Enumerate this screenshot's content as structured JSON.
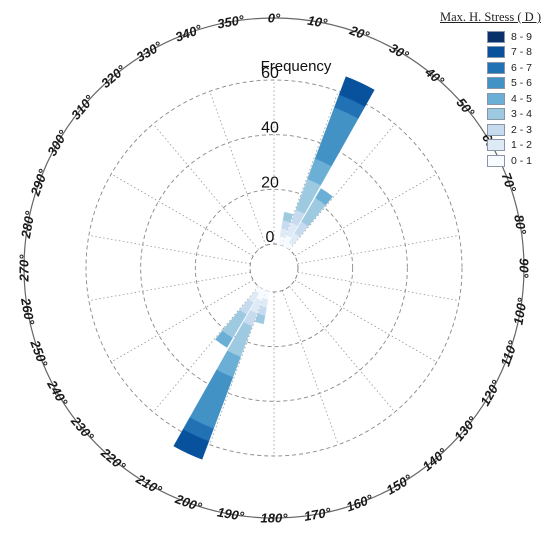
{
  "chart_data": {
    "type": "rose",
    "radial_title": "Frequency",
    "radial_ticks": [
      0,
      20,
      40,
      60
    ],
    "radial_max": 60,
    "angular_ticks": [
      "0°",
      "10°",
      "20°",
      "30°",
      "40°",
      "50°",
      "60°",
      "70°",
      "80°",
      "90°",
      "100°",
      "110°",
      "120°",
      "130°",
      "140°",
      "150°",
      "160°",
      "170°",
      "180°",
      "190°",
      "200°",
      "210°",
      "220°",
      "230°",
      "240°",
      "250°",
      "260°",
      "270°",
      "280°",
      "290°",
      "300°",
      "310°",
      "320°",
      "330°",
      "340°",
      "350°"
    ],
    "angular_tick_values": [
      0,
      10,
      20,
      30,
      40,
      50,
      60,
      70,
      80,
      90,
      100,
      110,
      120,
      130,
      140,
      150,
      160,
      170,
      180,
      190,
      200,
      210,
      220,
      230,
      240,
      250,
      260,
      270,
      280,
      290,
      300,
      310,
      320,
      330,
      340,
      350
    ],
    "direction": "clockwise",
    "zero_at": "top",
    "legend": {
      "title": "Max. H. Stress ( D )",
      "placement": "top-right",
      "bins": [
        "8 - 9",
        "7 - 8",
        "6 - 7",
        "5 - 6",
        "4 - 5",
        "3 - 4",
        "2 - 3",
        "1 - 2",
        "0 - 1"
      ],
      "colors": [
        "#08306b",
        "#08519c",
        "#2171b5",
        "#4292c6",
        "#6baed6",
        "#9ecae1",
        "#c6dbef",
        "#deebf7",
        "#f7fbff"
      ]
    },
    "sectors": [
      {
        "from": 10,
        "to": 20,
        "segments": [
          {
            "bin": "0 - 1",
            "value": 3
          },
          {
            "bin": "1 - 2",
            "value": 3
          },
          {
            "bin": "2 - 3",
            "value": 3
          },
          {
            "bin": "3 - 4",
            "value": 3
          }
        ]
      },
      {
        "from": 20,
        "to": 30,
        "segments": [
          {
            "bin": "0 - 1",
            "value": 4
          },
          {
            "bin": "1 - 2",
            "value": 5
          },
          {
            "bin": "2 - 3",
            "value": 5
          },
          {
            "bin": "3 - 4",
            "value": 12
          },
          {
            "bin": "4 - 5",
            "value": 8
          },
          {
            "bin": "5 - 6",
            "value": 20
          },
          {
            "bin": "6 - 7",
            "value": 5
          },
          {
            "bin": "7 - 8",
            "value": 7
          }
        ]
      },
      {
        "from": 30,
        "to": 40,
        "segments": [
          {
            "bin": "0 - 1",
            "value": 2
          },
          {
            "bin": "1 - 2",
            "value": 4
          },
          {
            "bin": "2 - 3",
            "value": 5
          },
          {
            "bin": "3 - 4",
            "value": 10
          },
          {
            "bin": "4 - 5",
            "value": 4
          }
        ]
      },
      {
        "from": 190,
        "to": 200,
        "segments": [
          {
            "bin": "0 - 1",
            "value": 3
          },
          {
            "bin": "1 - 2",
            "value": 3
          },
          {
            "bin": "2 - 3",
            "value": 3
          },
          {
            "bin": "3 - 4",
            "value": 3
          }
        ]
      },
      {
        "from": 200,
        "to": 210,
        "segments": [
          {
            "bin": "0 - 1",
            "value": 4
          },
          {
            "bin": "1 - 2",
            "value": 5
          },
          {
            "bin": "2 - 3",
            "value": 5
          },
          {
            "bin": "3 - 4",
            "value": 12
          },
          {
            "bin": "4 - 5",
            "value": 8
          },
          {
            "bin": "5 - 6",
            "value": 20
          },
          {
            "bin": "6 - 7",
            "value": 5
          },
          {
            "bin": "7 - 8",
            "value": 7
          }
        ]
      },
      {
        "from": 210,
        "to": 220,
        "segments": [
          {
            "bin": "0 - 1",
            "value": 2
          },
          {
            "bin": "1 - 2",
            "value": 4
          },
          {
            "bin": "2 - 3",
            "value": 5
          },
          {
            "bin": "3 - 4",
            "value": 10
          },
          {
            "bin": "4 - 5",
            "value": 4
          }
        ]
      }
    ]
  }
}
